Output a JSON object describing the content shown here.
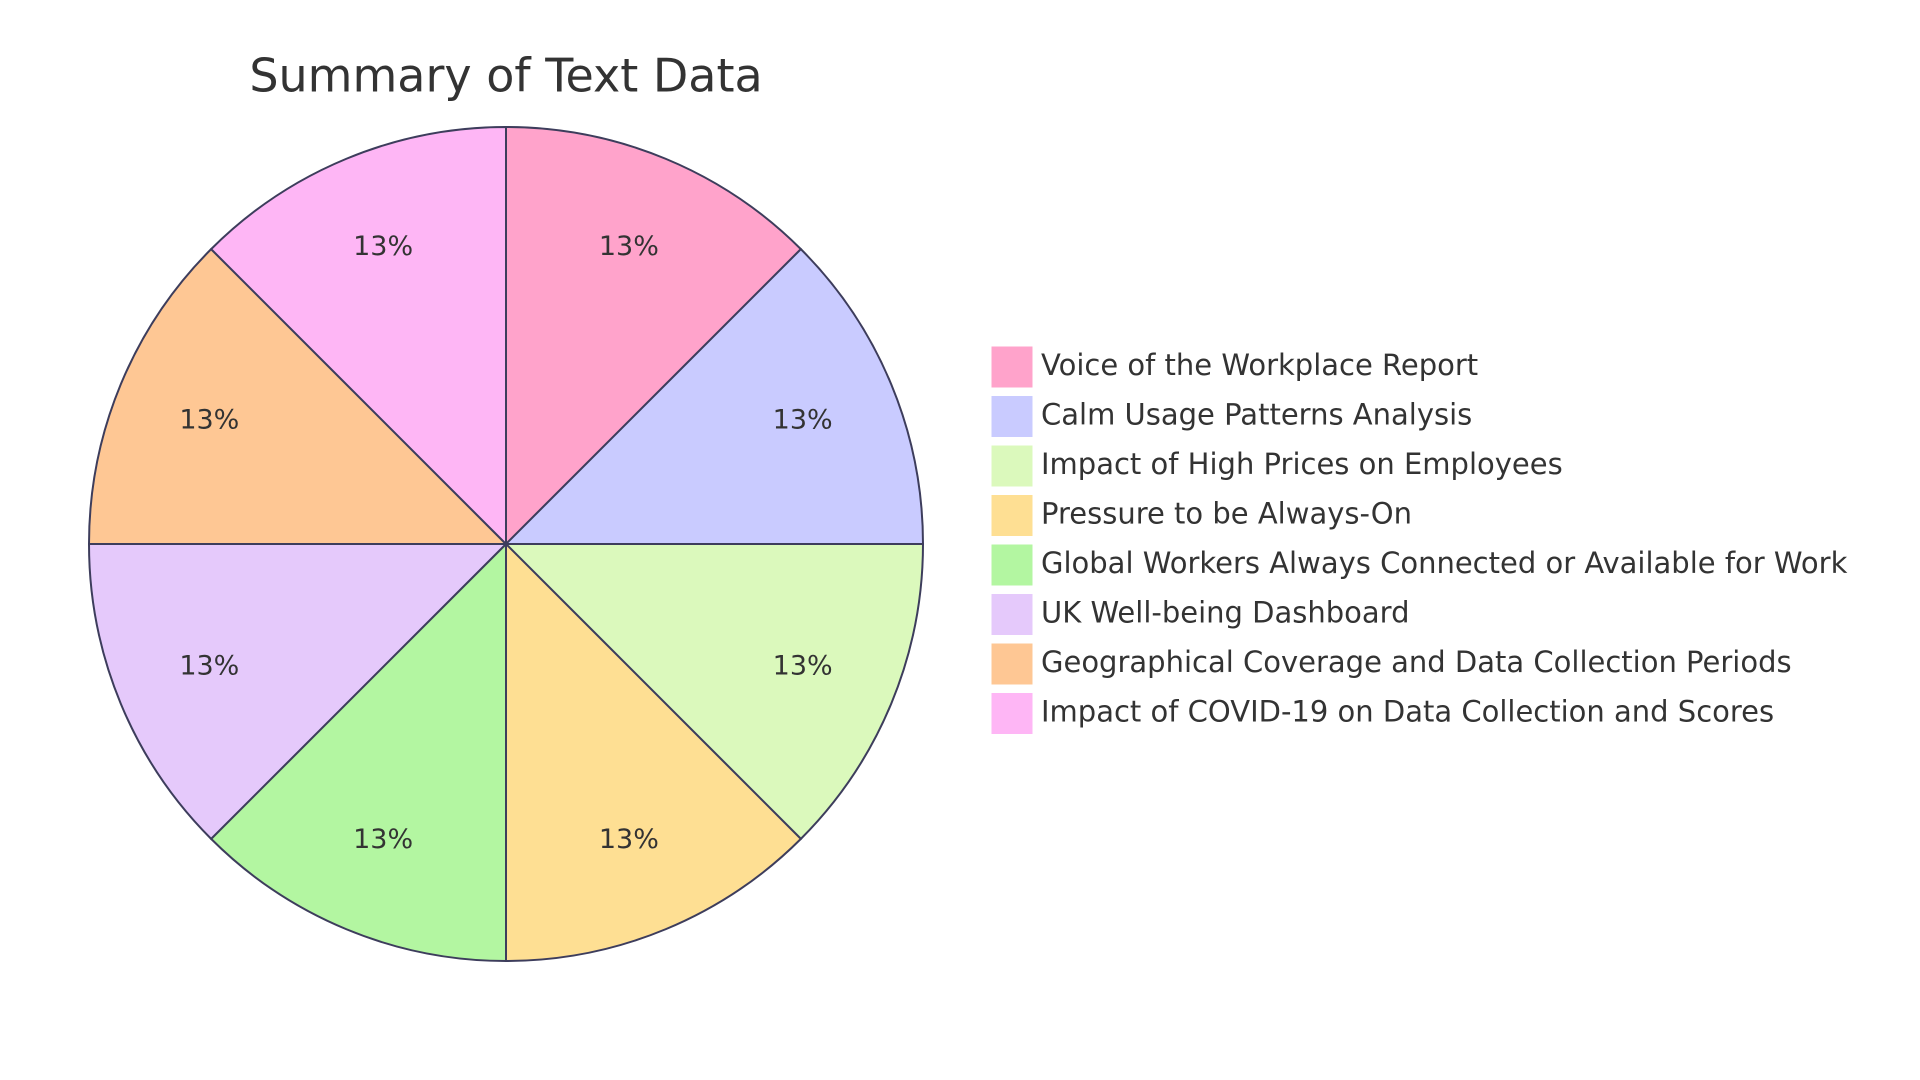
{
  "chart_data": {
    "type": "pie",
    "title": "Summary of Text Data",
    "categories": [
      "Voice of the Workplace Report",
      "Calm Usage Patterns Analysis",
      "Impact of High Prices on Employees",
      "Pressure to be Always-On",
      "Global Workers Always Connected or Available for Work",
      "UK Well-being Dashboard",
      "Geographical Coverage and Data Collection Periods",
      "Impact of COVID-19 on Data Collection and Scores"
    ],
    "values": [
      13,
      13,
      13,
      13,
      13,
      13,
      13,
      13
    ],
    "value_labels": [
      "13%",
      "13%",
      "13%",
      "13%",
      "13%",
      "13%",
      "13%",
      "13%"
    ],
    "colors": [
      "#ffa3cb",
      "#c9cbff",
      "#dbf9bc",
      "#fedf93",
      "#b3f6a1",
      "#e5c9fb",
      "#fec794",
      "#feb6f5"
    ],
    "legend": "right"
  }
}
